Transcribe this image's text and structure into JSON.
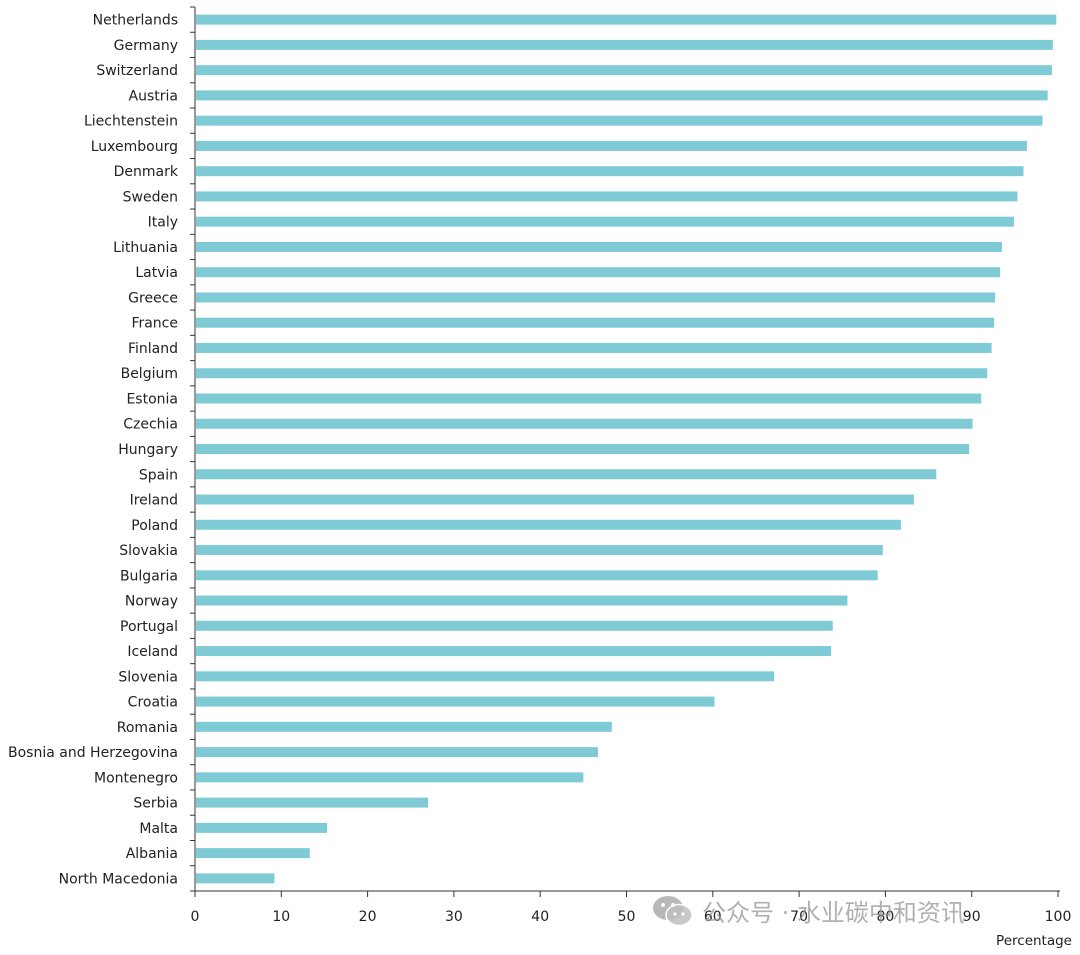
{
  "chart_data": {
    "type": "bar",
    "orientation": "horizontal",
    "categories": [
      "Netherlands",
      "Germany",
      "Switzerland",
      "Austria",
      "Liechtenstein",
      "Luxembourg",
      "Denmark",
      "Sweden",
      "Italy",
      "Lithuania",
      "Latvia",
      "Greece",
      "France",
      "Finland",
      "Belgium",
      "Estonia",
      "Czechia",
      "Hungary",
      "Spain",
      "Ireland",
      "Poland",
      "Slovakia",
      "Bulgaria",
      "Norway",
      "Portugal",
      "Iceland",
      "Slovenia",
      "Croatia",
      "Romania",
      "Bosnia and Herzegovina",
      "Montenegro",
      "Serbia",
      "Malta",
      "Albania",
      "North Macedonia"
    ],
    "values": [
      99.8,
      99.4,
      99.3,
      98.8,
      98.2,
      96.4,
      96.0,
      95.3,
      94.9,
      93.5,
      93.3,
      92.7,
      92.6,
      92.3,
      91.8,
      91.1,
      90.1,
      89.7,
      85.9,
      83.3,
      81.8,
      79.7,
      79.1,
      75.6,
      73.9,
      73.7,
      67.1,
      60.2,
      48.3,
      46.7,
      45.0,
      27.0,
      15.3,
      13.3,
      9.2
    ],
    "color": "#7ecbd6",
    "xlim": [
      0,
      100
    ],
    "xticks": [
      0,
      10,
      20,
      30,
      40,
      50,
      60,
      70,
      80,
      90,
      100
    ],
    "xlabel": "Percentage",
    "ylabel": "",
    "title": "",
    "grid": false,
    "legend": "none"
  },
  "watermark": {
    "text": "公众号 · 水业碳中和资讯",
    "icon": "wechat-icon"
  }
}
